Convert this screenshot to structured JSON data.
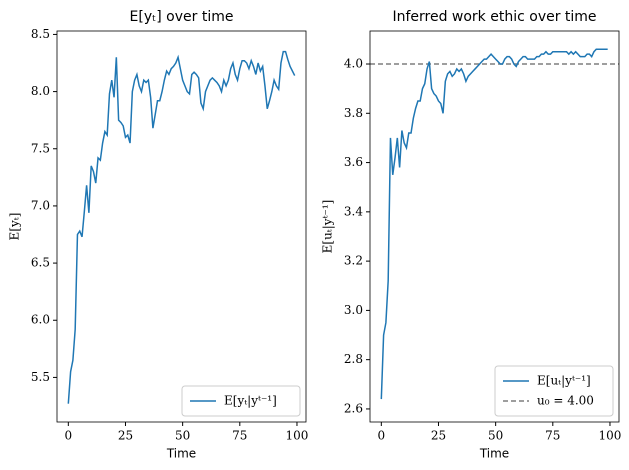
{
  "chart_data": [
    {
      "type": "line",
      "title": "E[yₜ] over time",
      "xlabel": "Time",
      "ylabel": "E[yₜ]",
      "x": [
        0,
        1,
        2,
        3,
        4,
        5,
        6,
        7,
        8,
        9,
        10,
        11,
        12,
        13,
        14,
        15,
        16,
        17,
        18,
        19,
        20,
        21,
        22,
        23,
        24,
        25,
        26,
        27,
        28,
        29,
        30,
        31,
        32,
        33,
        34,
        35,
        36,
        37,
        38,
        39,
        40,
        41,
        42,
        43,
        44,
        45,
        46,
        47,
        48,
        49,
        50,
        51,
        52,
        53,
        54,
        55,
        56,
        57,
        58,
        59,
        60,
        61,
        62,
        63,
        64,
        65,
        66,
        67,
        68,
        69,
        70,
        71,
        72,
        73,
        74,
        75,
        76,
        77,
        78,
        79,
        80,
        81,
        82,
        83,
        84,
        85,
        86,
        87,
        88,
        89,
        90,
        91,
        92,
        93,
        94,
        95,
        96,
        97,
        98,
        99
      ],
      "series": [
        {
          "name": "E[yₜ|yᵗ⁻¹]",
          "color": "#1f77b4",
          "values": [
            5.27,
            5.55,
            5.65,
            5.92,
            6.75,
            6.78,
            6.73,
            6.95,
            7.18,
            6.94,
            7.35,
            7.3,
            7.2,
            7.42,
            7.4,
            7.55,
            7.65,
            7.62,
            7.98,
            8.1,
            7.95,
            8.3,
            7.75,
            7.73,
            7.7,
            7.6,
            7.62,
            7.55,
            8.0,
            8.1,
            8.15,
            8.05,
            8.0,
            8.1,
            8.08,
            8.1,
            7.95,
            7.68,
            7.8,
            7.92,
            7.92,
            8.0,
            8.1,
            8.18,
            8.15,
            8.2,
            8.22,
            8.25,
            8.3,
            8.2,
            8.1,
            8.05,
            8.0,
            7.98,
            8.15,
            8.17,
            8.15,
            8.12,
            7.9,
            7.85,
            8.0,
            8.05,
            8.1,
            8.12,
            8.1,
            8.08,
            8.05,
            8.0,
            8.1,
            8.05,
            8.1,
            8.2,
            8.25,
            8.15,
            8.1,
            8.2,
            8.27,
            8.27,
            8.25,
            8.2,
            8.27,
            8.22,
            8.15,
            8.25,
            8.18,
            8.22,
            8.05,
            7.85,
            7.92,
            8.0,
            8.1,
            8.05,
            8.02,
            8.25,
            8.35,
            8.35,
            8.28,
            8.22,
            8.18,
            8.14
          ]
        }
      ],
      "xlim": [
        -4.95,
        103.95
      ],
      "xticks": [
        0,
        25,
        50,
        75,
        100
      ],
      "ylim": [
        5.11,
        8.53
      ],
      "yticks": [
        5.5,
        {
          "value": 6,
          "label": "6.0"
        },
        6.5,
        {
          "value": 7,
          "label": "7.0"
        },
        7.5,
        {
          "value": 8,
          "label": "8.0"
        },
        8.5
      ],
      "legend": "lower right"
    },
    {
      "type": "line",
      "title": "Inferred work ethic over time",
      "xlabel": "Time",
      "ylabel": "E[uₜ|yᵗ⁻¹]",
      "x": [
        0,
        1,
        2,
        3,
        4,
        5,
        6,
        7,
        8,
        9,
        10,
        11,
        12,
        13,
        14,
        15,
        16,
        17,
        18,
        19,
        20,
        21,
        22,
        23,
        24,
        25,
        26,
        27,
        28,
        29,
        30,
        31,
        32,
        33,
        34,
        35,
        36,
        37,
        38,
        39,
        40,
        41,
        42,
        43,
        44,
        45,
        46,
        47,
        48,
        49,
        50,
        51,
        52,
        53,
        54,
        55,
        56,
        57,
        58,
        59,
        60,
        61,
        62,
        63,
        64,
        65,
        66,
        67,
        68,
        69,
        70,
        71,
        72,
        73,
        74,
        75,
        76,
        77,
        78,
        79,
        80,
        81,
        82,
        83,
        84,
        85,
        86,
        87,
        88,
        89,
        90,
        91,
        92,
        93,
        94,
        95,
        96,
        97,
        98,
        99
      ],
      "series": [
        {
          "name": "E[uₜ|yᵗ⁻¹]",
          "color": "#1f77b4",
          "values": [
            2.64,
            2.9,
            2.95,
            3.12,
            3.7,
            3.55,
            3.62,
            3.7,
            3.58,
            3.73,
            3.68,
            3.66,
            3.72,
            3.72,
            3.78,
            3.82,
            3.85,
            3.85,
            3.9,
            3.92,
            3.98,
            4.01,
            3.9,
            3.88,
            3.87,
            3.85,
            3.84,
            3.8,
            3.93,
            3.96,
            3.97,
            3.95,
            3.96,
            3.98,
            3.97,
            3.98,
            3.96,
            3.93,
            3.95,
            3.96,
            3.97,
            3.98,
            3.99,
            4.0,
            4.01,
            4.02,
            4.02,
            4.03,
            4.04,
            4.03,
            4.02,
            4.01,
            4.0,
            4.0,
            4.02,
            4.03,
            4.03,
            4.02,
            4.0,
            3.99,
            4.01,
            4.02,
            4.03,
            4.03,
            4.02,
            4.02,
            4.02,
            4.02,
            4.03,
            4.03,
            4.04,
            4.04,
            4.05,
            4.04,
            4.04,
            4.05,
            4.05,
            4.05,
            4.05,
            4.05,
            4.05,
            4.05,
            4.04,
            4.05,
            4.04,
            4.05,
            4.04,
            4.03,
            4.03,
            4.03,
            4.04,
            4.04,
            4.03,
            4.05,
            4.06,
            4.06,
            4.06,
            4.06,
            4.06,
            4.06
          ]
        }
      ],
      "hline": {
        "name": "u₀ = 4.00",
        "value": 4,
        "color": "#7f7f7f"
      },
      "xlim": [
        -4.95,
        103.95
      ],
      "xticks": [
        0,
        25,
        50,
        75,
        100
      ],
      "ylim": [
        2.547,
        4.134
      ],
      "yticks": [
        2.6,
        2.8,
        {
          "value": 3,
          "label": "3.0"
        },
        3.2,
        3.4,
        3.6,
        3.8,
        {
          "value": 4,
          "label": "4.0"
        }
      ],
      "legend": "lower right"
    }
  ]
}
